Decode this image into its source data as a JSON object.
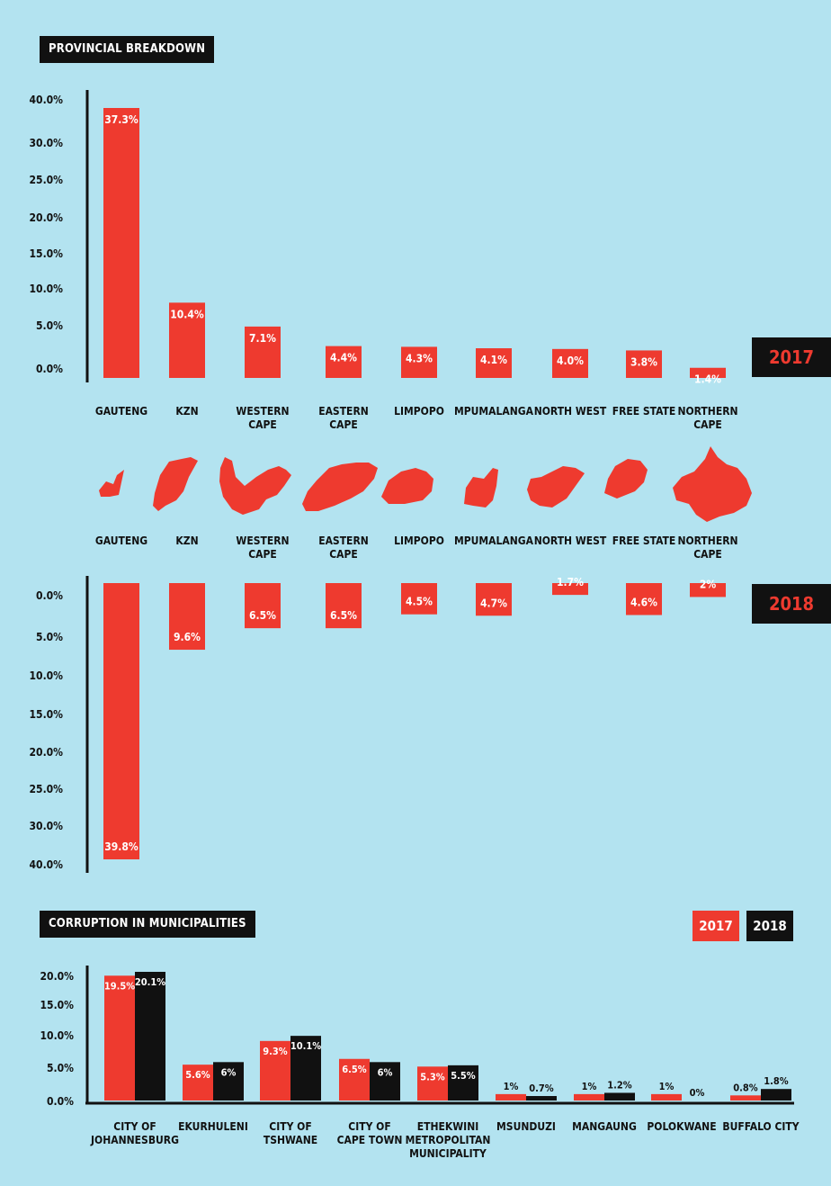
{
  "headers": {
    "provincial": "PROVINCIAL BREAKDOWN",
    "municipal": "CORRUPTION IN MUNICIPALITIES",
    "year_2017": "2017",
    "year_2018": "2018"
  },
  "colors": {
    "bg": "#b3e3f0",
    "red": "#ee3a2f",
    "black": "#111111"
  },
  "chart_data": [
    {
      "type": "bar",
      "year": "2017",
      "categories": [
        "GAUTENG",
        "KZN",
        "WESTERN CAPE",
        "EASTERN CAPE",
        "LIMPOPO",
        "MPUMALANGA",
        "NORTH WEST",
        "FREE STATE",
        "NORTHERN CAPE"
      ],
      "values": [
        37.3,
        10.4,
        7.1,
        4.4,
        4.3,
        4.1,
        4.0,
        3.8,
        1.4
      ],
      "labels": [
        "37.3%",
        "10.4%",
        "7.1%",
        "4.4%",
        "4.3%",
        "4.1%",
        "4.0%",
        "3.8%",
        "1.4%"
      ],
      "yticks": [
        "40.0%",
        "30.0%",
        "25.0%",
        "20.0%",
        "15.0%",
        "10.0%",
        "5.0%",
        "0.0%"
      ],
      "ylim": [
        0,
        40
      ]
    },
    {
      "type": "bar",
      "year": "2018",
      "orientation": "downward",
      "categories": [
        "GAUTENG",
        "KZN",
        "WESTERN CAPE",
        "EASTERN CAPE",
        "LIMPOPO",
        "MPUMALANGA",
        "NORTH WEST",
        "FREE STATE",
        "NORTHERN CAPE"
      ],
      "values": [
        39.8,
        9.6,
        6.5,
        6.5,
        4.5,
        4.7,
        1.7,
        4.6,
        2.0
      ],
      "labels": [
        "39.8%",
        "9.6%",
        "6.5%",
        "6.5%",
        "4.5%",
        "4.7%",
        "1.7%",
        "4.6%",
        "2%"
      ],
      "yticks": [
        "0.0%",
        "5.0%",
        "10.0%",
        "15.0%",
        "20.0%",
        "25.0%",
        "30.0%",
        "40.0%"
      ],
      "ylim": [
        0,
        40
      ]
    },
    {
      "type": "bar",
      "title": "CORRUPTION IN MUNICIPALITIES",
      "categories": [
        "CITY OF\nJOHANNESBURG",
        "EKURHULENI",
        "CITY OF\nTSHWANE",
        "CITY OF\nCAPE TOWN",
        "ETHEKWINI\nMETROPOLITAN\nMUNICIPALITY",
        "MSUNDUZI",
        "MANGAUNG",
        "POLOKWANE",
        "BUFFALO CITY"
      ],
      "series": [
        {
          "name": "2017",
          "values": [
            19.5,
            5.6,
            9.3,
            6.5,
            5.3,
            1,
            1,
            1,
            0.8
          ],
          "labels": [
            "19.5%",
            "5.6%",
            "9.3%",
            "6.5%",
            "5.3%",
            "1%",
            "1%",
            "1%",
            "0.8%"
          ]
        },
        {
          "name": "2018",
          "values": [
            20.1,
            6,
            10.1,
            6,
            5.5,
            0.7,
            1.2,
            0,
            1.8
          ],
          "labels": [
            "20.1%",
            "6%",
            "10.1%",
            "6%",
            "5.5%",
            "0.7%",
            "1.2%",
            "0%",
            "1.8%"
          ]
        }
      ],
      "yticks": [
        "20.0%",
        "15.0%",
        "10.0%",
        "5.0%",
        "0.0%"
      ],
      "ylim": [
        0,
        20
      ]
    }
  ]
}
